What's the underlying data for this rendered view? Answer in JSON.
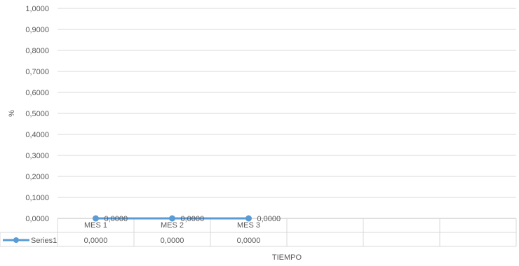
{
  "chart_data": {
    "type": "line",
    "categories": [
      "MES 1",
      "MES 2",
      "MES 3"
    ],
    "series": [
      {
        "name": "Series1",
        "values": [
          0,
          0,
          0
        ],
        "color": "#5B9BD5"
      }
    ],
    "data_labels": [
      "0,0000",
      "0,0000",
      "0,0000"
    ],
    "table_values": [
      "0,0000",
      "0,0000",
      "0,0000"
    ],
    "y_ticks": [
      "0,0000",
      "0,1000",
      "0,2000",
      "0,3000",
      "0,4000",
      "0,5000",
      "0,6000",
      "0,7000",
      "0,8000",
      "0,9000",
      "1,0000"
    ],
    "ylim": [
      0,
      1
    ],
    "ylabel": "%",
    "xlabel": "TIEMPO",
    "grid": true,
    "legend": "data-table"
  }
}
